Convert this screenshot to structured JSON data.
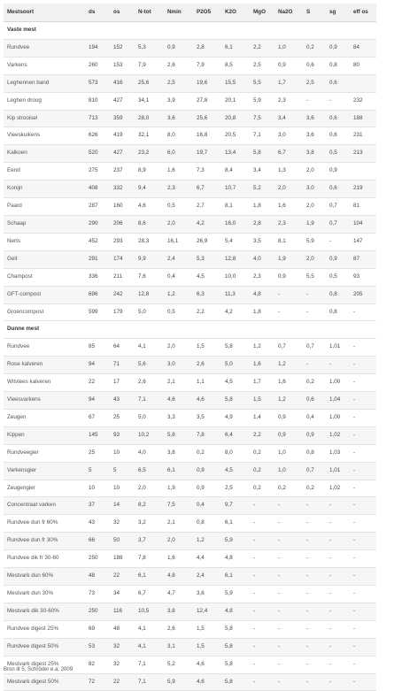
{
  "header": [
    "Mestsoort",
    "ds",
    "os",
    "N-tot",
    "Nmin",
    "P2O5",
    "K2O",
    "MgO",
    "Na2O",
    "S",
    "sg",
    "eff os"
  ],
  "sections": [
    {
      "title": "Vaste mest",
      "rows": [
        [
          "Rundvee",
          "194",
          "152",
          "5,3",
          "0,9",
          "2,8",
          "6,1",
          "2,2",
          "1,0",
          "0,2",
          "0,9",
          "84"
        ],
        [
          "Varkens",
          "260",
          "153",
          "7,9",
          "2,6",
          "7,9",
          "8,5",
          "2,5",
          "0,9",
          "0,6",
          "0,8",
          "80"
        ],
        [
          "Leghennen band",
          "573",
          "416",
          "25,6",
          "2,5",
          "19,6",
          "15,5",
          "5,5",
          "1,7",
          "2,5",
          "0,6",
          ""
        ],
        [
          "Leghen droog",
          "810",
          "427",
          "34,1",
          "3,9",
          "27,8",
          "20,1",
          "5,9",
          "2,3",
          "-",
          "-",
          "232"
        ],
        [
          "Kip strooisel",
          "713",
          "359",
          "28,0",
          "3,6",
          "25,6",
          "20,8",
          "7,5",
          "3,4",
          "3,6",
          "0,6",
          "188"
        ],
        [
          "Vleeskuikens",
          "626",
          "419",
          "32,1",
          "8,0",
          "16,8",
          "20,5",
          "7,1",
          "3,0",
          "3,6",
          "0,6",
          "231"
        ],
        [
          "Kalkoen",
          "520",
          "427",
          "23,2",
          "6,0",
          "19,7",
          "13,4",
          "5,8",
          "6,7",
          "3,8",
          "0,5",
          "213"
        ],
        [
          "Eend",
          "275",
          "237",
          "8,9",
          "1,6",
          "7,3",
          "8,4",
          "3,4",
          "1,3",
          "2,0",
          "0,9",
          ""
        ],
        [
          "Konijn",
          "408",
          "332",
          "9,4",
          "2,3",
          "6,7",
          "10,7",
          "5,2",
          "2,0",
          "3,0",
          "0,6",
          "219"
        ],
        [
          "Paard",
          "287",
          "160",
          "4,6",
          "0,5",
          "2,7",
          "8,1",
          "1,8",
          "1,6",
          "2,0",
          "0,7",
          "81"
        ],
        [
          "Schaap",
          "290",
          "206",
          "8,6",
          "2,0",
          "4,2",
          "16,0",
          "2,8",
          "2,3",
          "1,9",
          "0,7",
          "104"
        ],
        [
          "Nerts",
          "452",
          "293",
          "28,3",
          "16,1",
          "26,9",
          "5,4",
          "3,5",
          "8,1",
          "5,9",
          "-",
          "147"
        ],
        [
          "Geit",
          "291",
          "174",
          "9,9",
          "2,4",
          "5,3",
          "12,8",
          "4,0",
          "1,9",
          "2,0",
          "0,9",
          "87"
        ],
        [
          "Champost",
          "336",
          "211",
          "7,6",
          "0,4",
          "4,5",
          "10,0",
          "2,3",
          "0,9",
          "5,5",
          "0,5",
          "93"
        ],
        [
          "GFT-compost",
          "696",
          "242",
          "12,8",
          "1,2",
          "6,3",
          "11,3",
          "4,8",
          "-",
          "-",
          "0,8",
          "205"
        ],
        [
          "Groencompost",
          "599",
          "179",
          "5,0",
          "0,5",
          "2,2",
          "4,2",
          "1,8",
          "-",
          "-",
          "0,8",
          "-"
        ]
      ]
    },
    {
      "title": "Dunne mest",
      "rows": [
        [
          "Rundvee",
          "85",
          "64",
          "4,1",
          "2,0",
          "1,5",
          "5,8",
          "1,2",
          "0,7",
          "0,7",
          "1,01",
          "-"
        ],
        [
          "Rose kalveren",
          "94",
          "71",
          "5,6",
          "3,0",
          "2,6",
          "5,0",
          "1,6",
          "1,2",
          "-",
          "-",
          "-"
        ],
        [
          "Witvlees kalveren",
          "22",
          "17",
          "2,6",
          "2,1",
          "1,1",
          "4,5",
          "1,7",
          "1,6",
          "0,2",
          "1,00",
          "-"
        ],
        [
          "Vleesvarkens",
          "94",
          "43",
          "7,1",
          "4,6",
          "4,6",
          "5,8",
          "1,5",
          "1,2",
          "0,6",
          "1,04",
          "-"
        ],
        [
          "Zeugen",
          "67",
          "25",
          "5,0",
          "3,3",
          "3,5",
          "4,9",
          "1,4",
          "0,9",
          "0,4",
          "1,00",
          "-"
        ],
        [
          "Kippen",
          "145",
          "93",
          "10,2",
          "5,8",
          "7,8",
          "6,4",
          "2,2",
          "0,9",
          "0,9",
          "1,02",
          "-"
        ],
        [
          "Rundveegier",
          "25",
          "10",
          "4,0",
          "3,8",
          "0,2",
          "8,0",
          "0,2",
          "1,0",
          "0,8",
          "1,03",
          "-"
        ],
        [
          "Varkensgier",
          "5",
          "5",
          "6,5",
          "6,1",
          "0,9",
          "4,5",
          "0,2",
          "1,0",
          "0,7",
          "1,01",
          "-"
        ],
        [
          "Zeugengier",
          "10",
          "10",
          "2,0",
          "1,9",
          "0,9",
          "2,5",
          "0,2",
          "0,2",
          "0,2",
          "1,02",
          "-"
        ],
        [
          "Concentraat varken",
          "37",
          "14",
          "8,2",
          "7,5",
          "0,4",
          "9,7",
          "-",
          "-",
          "-",
          "-",
          "-"
        ],
        [
          "Rundvee dun fr 60%",
          "43",
          "32",
          "3,2",
          "2,1",
          "0,8",
          "6,1",
          "-",
          "-",
          "-",
          "-",
          "-"
        ],
        [
          "Rundvee dun fr 30%",
          "66",
          "50",
          "3,7",
          "2,0",
          "1,2",
          "5,9",
          "-",
          "-",
          "-",
          "-",
          "-"
        ],
        [
          "Rundvee dik fr 30-60",
          "250",
          "188",
          "7,8",
          "1,6",
          "4,4",
          "4,8",
          "-",
          "-",
          "-",
          "-",
          "-"
        ],
        [
          "Mestvark dun 60%",
          "48",
          "22",
          "6,1",
          "4,8",
          "2,4",
          "6,1",
          "-",
          "-",
          "-",
          "-",
          "-"
        ],
        [
          "Mestvark dun 30%",
          "73",
          "34",
          "6,7",
          "4,7",
          "3,6",
          "5,9",
          "-",
          "-",
          "-",
          "-",
          "-"
        ],
        [
          "Mestvark dik 30-60%",
          "250",
          "116",
          "10,5",
          "3,8",
          "12,4",
          "4,8",
          "-",
          "-",
          "-",
          "-",
          "-"
        ],
        [
          "Rundvee digest 25%",
          "69",
          "48",
          "4,1",
          "2,6",
          "1,5",
          "5,8",
          "-",
          "-",
          "-",
          "-",
          "-"
        ],
        [
          "Rundvee digest 50%",
          "53",
          "32",
          "4,1",
          "3,1",
          "1,5",
          "5,8",
          "-",
          "-",
          "-",
          "-",
          "-"
        ],
        [
          "Mestvark digest 25%",
          "82",
          "32",
          "7,1",
          "5,2",
          "4,6",
          "5,8",
          "-",
          "-",
          "-",
          "-",
          "-"
        ],
        [
          "Mestvark digest 50%",
          "72",
          "22",
          "7,1",
          "5,9",
          "4,6",
          "5,8",
          "-",
          "-",
          "-",
          "-",
          "-"
        ]
      ]
    }
  ],
  "source": "Bron lit 5, Schröder e.a. 2009"
}
